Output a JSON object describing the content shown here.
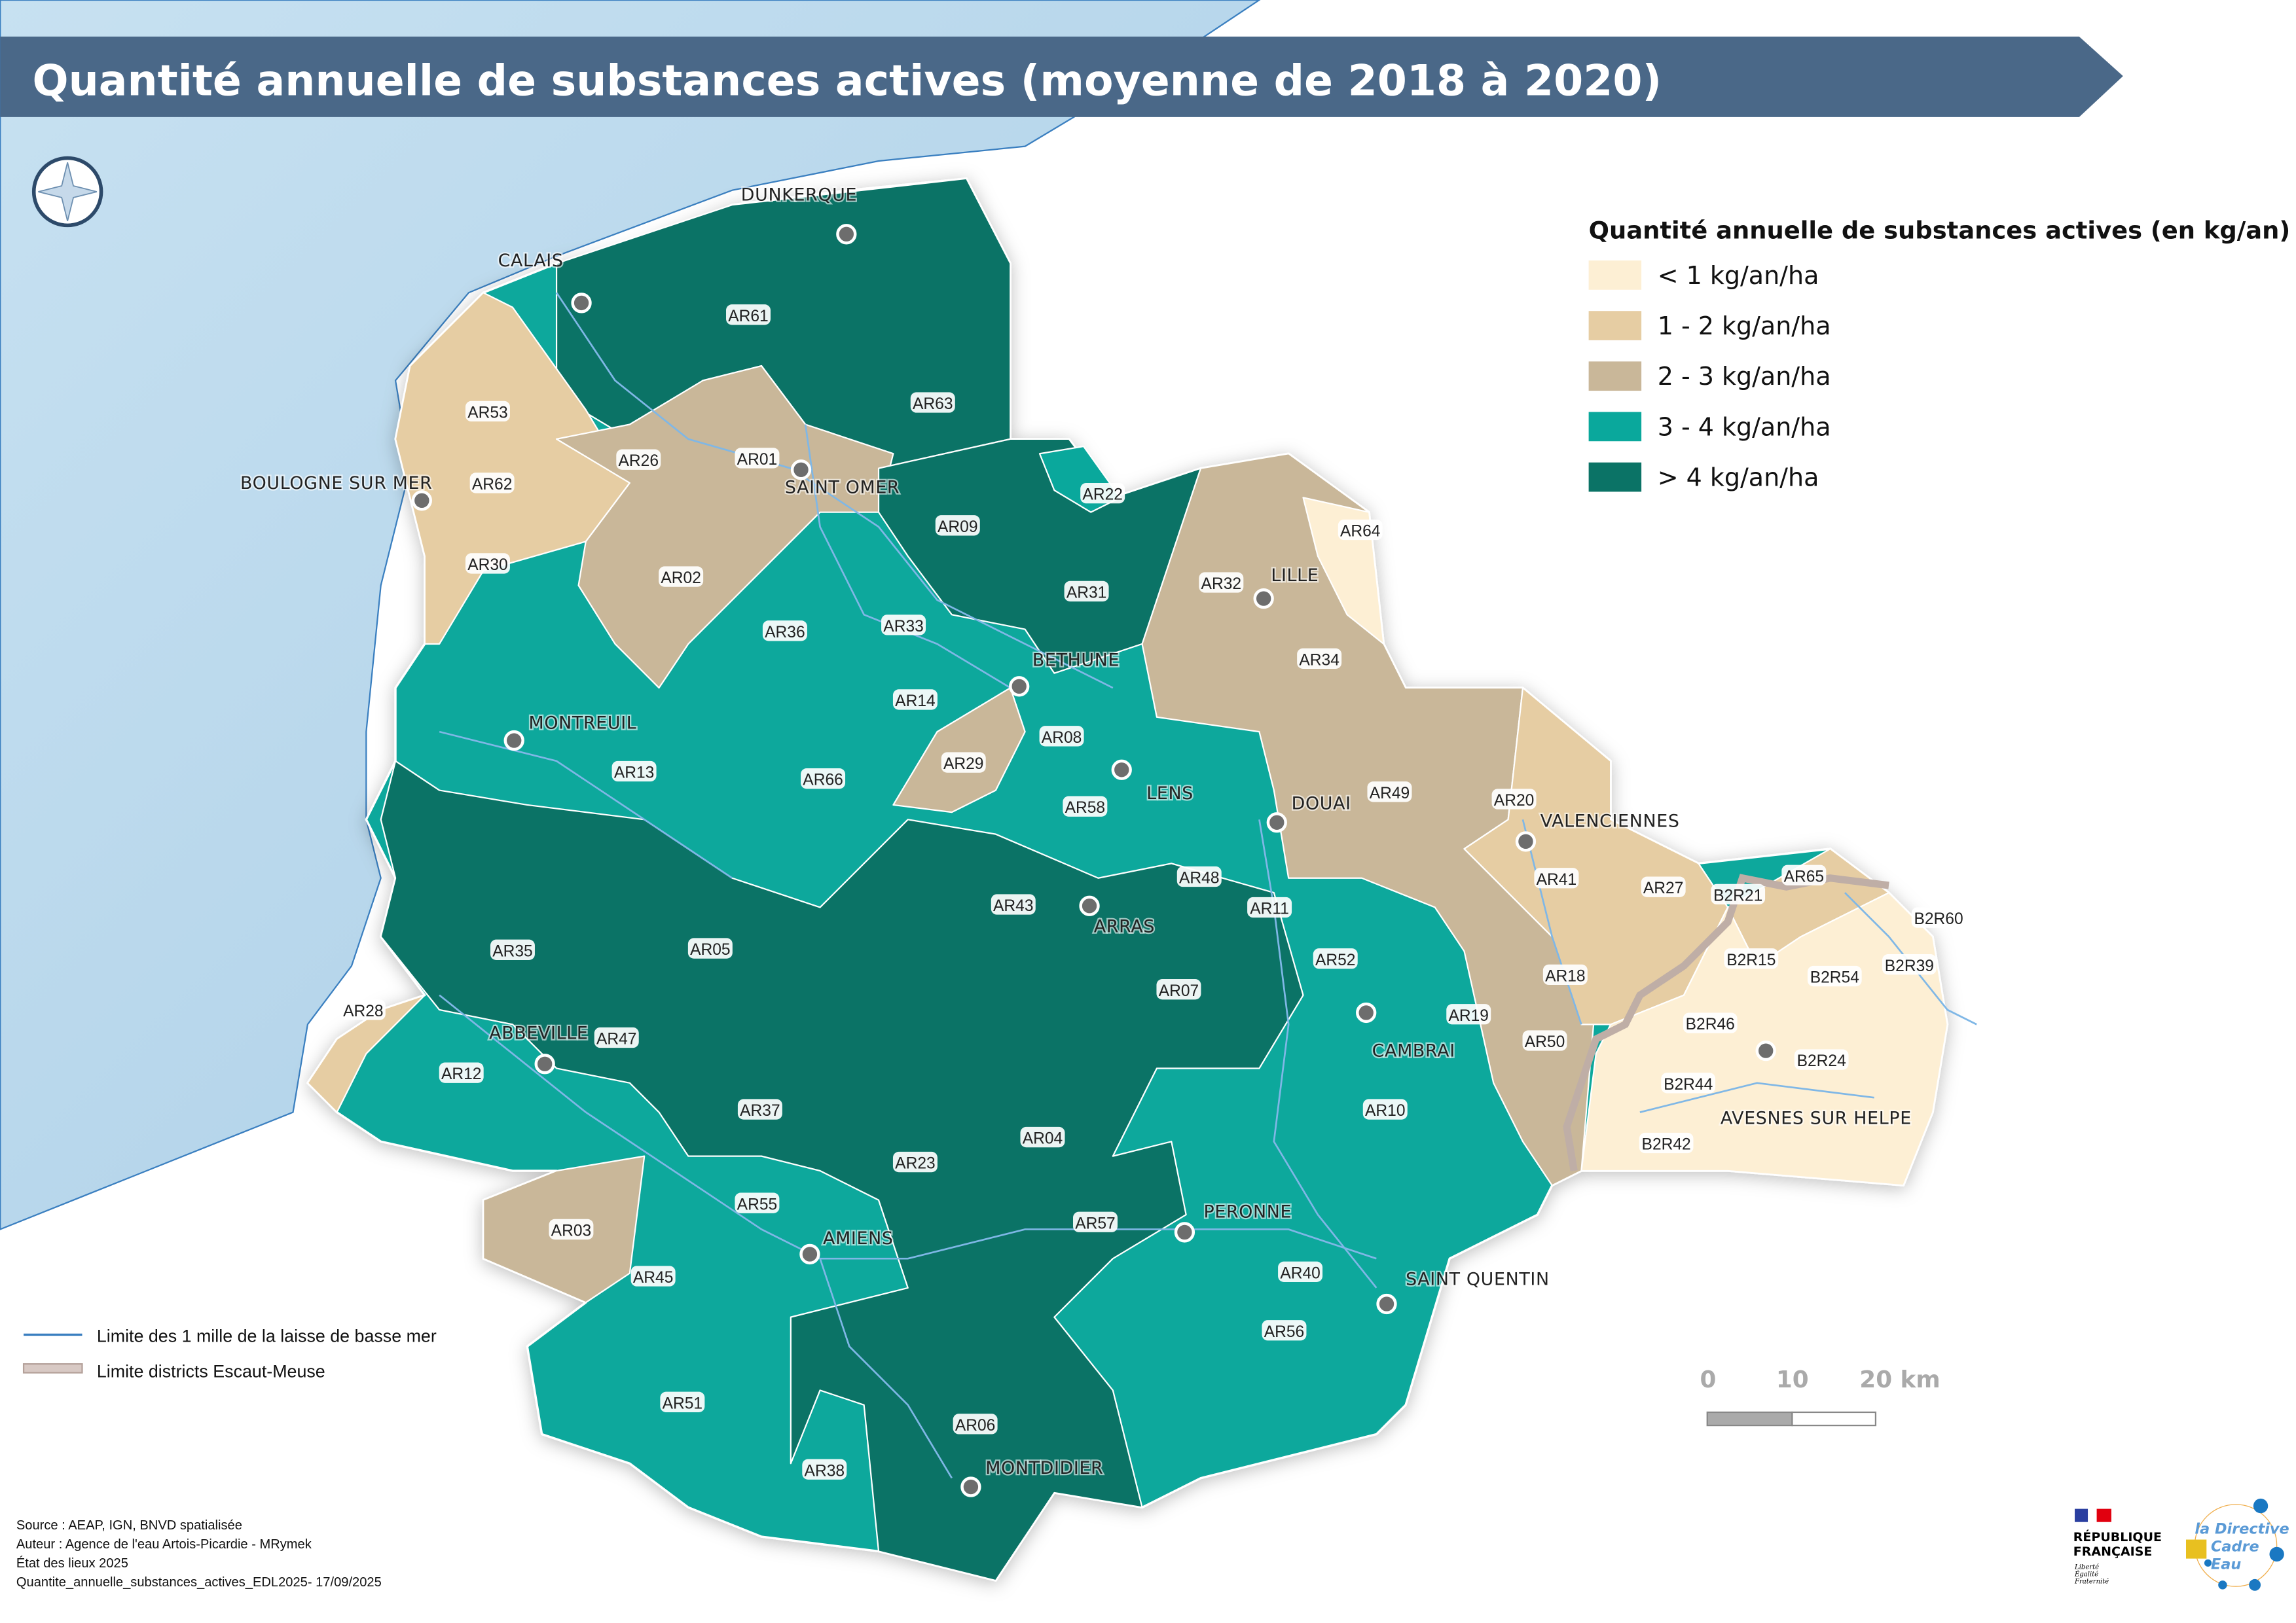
{
  "title": "Quantité annuelle de substances actives (moyenne de 2018 à 2020)",
  "legend": {
    "title": "Quantité annuelle de substances actives (en kg/an)",
    "classes": [
      {
        "label": "< 1 kg/an/ha",
        "color": "#fdefd4"
      },
      {
        "label": "1 - 2 kg/an/ha",
        "color": "#e6cda3"
      },
      {
        "label": "2 - 3 kg/an/ha",
        "color": "#c9b799"
      },
      {
        "label": "3 - 4 kg/an/ha",
        "color": "#0aa89c"
      },
      {
        "label": "> 4 kg/an/ha",
        "color": "#0b7366"
      }
    ],
    "lines": [
      {
        "label": "Limite des 1 mille de la laisse de basse mer",
        "color": "#3a7fc0"
      },
      {
        "label": "Limite districts Escaut-Meuse",
        "color": "#c7b3ab"
      }
    ]
  },
  "colors": {
    "banner": "#4a6888",
    "sea": "#cfe5f3",
    "river": "#7fb7e6",
    "city_dot": "#6d6d6d"
  },
  "cities": [
    "DUNKERQUE",
    "CALAIS",
    "BOULOGNE SUR MER",
    "SAINT OMER",
    "LILLE",
    "BETHUNE",
    "MONTREUIL",
    "LENS",
    "DOUAI",
    "VALENCIENNES",
    "ARRAS",
    "ABBEVILLE",
    "CAMBRAI",
    "AVESNES SUR HELPE",
    "PERONNE",
    "AMIENS",
    "SAINT QUENTIN",
    "MONTDIDIER"
  ],
  "water_bodies": [
    {
      "id": "AR61",
      "class": 4
    },
    {
      "id": "AR63",
      "class": 4
    },
    {
      "id": "AR53",
      "class": 1
    },
    {
      "id": "AR62",
      "class": 1
    },
    {
      "id": "AR30",
      "class": 1
    },
    {
      "id": "AR26",
      "class": 2
    },
    {
      "id": "AR01",
      "class": 2
    },
    {
      "id": "AR02",
      "class": 2
    },
    {
      "id": "AR22",
      "class": 3
    },
    {
      "id": "AR09",
      "class": 4
    },
    {
      "id": "AR31",
      "class": 4
    },
    {
      "id": "AR32",
      "class": 2
    },
    {
      "id": "AR64",
      "class": 0
    },
    {
      "id": "AR34",
      "class": 2
    },
    {
      "id": "AR36",
      "class": 3
    },
    {
      "id": "AR33",
      "class": 3
    },
    {
      "id": "AR14",
      "class": 3
    },
    {
      "id": "AR29",
      "class": 2
    },
    {
      "id": "AR08",
      "class": 3
    },
    {
      "id": "AR58",
      "class": 3
    },
    {
      "id": "AR13",
      "class": 3
    },
    {
      "id": "AR66",
      "class": 3
    },
    {
      "id": "AR49",
      "class": 2
    },
    {
      "id": "AR20",
      "class": 1
    },
    {
      "id": "AR41",
      "class": 1
    },
    {
      "id": "AR27",
      "class": 1
    },
    {
      "id": "AR65",
      "class": 1
    },
    {
      "id": "AR18",
      "class": 2
    },
    {
      "id": "AR50",
      "class": 2
    },
    {
      "id": "AR43",
      "class": 4
    },
    {
      "id": "AR48",
      "class": 3
    },
    {
      "id": "AR11",
      "class": 3
    },
    {
      "id": "AR52",
      "class": 3
    },
    {
      "id": "AR19",
      "class": 3
    },
    {
      "id": "AR10",
      "class": 3
    },
    {
      "id": "AR07",
      "class": 4
    },
    {
      "id": "AR05",
      "class": 4
    },
    {
      "id": "AR35",
      "class": 4
    },
    {
      "id": "AR28",
      "class": 1
    },
    {
      "id": "AR47",
      "class": 4
    },
    {
      "id": "AR12",
      "class": 3
    },
    {
      "id": "AR37",
      "class": 4
    },
    {
      "id": "AR04",
      "class": 4
    },
    {
      "id": "AR23",
      "class": 4
    },
    {
      "id": "AR55",
      "class": 3
    },
    {
      "id": "AR03",
      "class": 2
    },
    {
      "id": "AR45",
      "class": 3
    },
    {
      "id": "AR57",
      "class": 4
    },
    {
      "id": "AR40",
      "class": 3
    },
    {
      "id": "AR56",
      "class": 3
    },
    {
      "id": "AR51",
      "class": 3
    },
    {
      "id": "AR38",
      "class": 3
    },
    {
      "id": "AR06",
      "class": 4
    },
    {
      "id": "B2R21",
      "class": 1
    },
    {
      "id": "B2R60",
      "class": 0
    },
    {
      "id": "B2R15",
      "class": 1
    },
    {
      "id": "B2R39",
      "class": 0
    },
    {
      "id": "B2R54",
      "class": 0
    },
    {
      "id": "B2R46",
      "class": 0
    },
    {
      "id": "B2R24",
      "class": 0
    },
    {
      "id": "B2R44",
      "class": 0
    },
    {
      "id": "B2R42",
      "class": 0
    }
  ],
  "scale": {
    "ticks": [
      "0",
      "10",
      "20 km"
    ]
  },
  "footer": [
    "Source : AEAP, IGN, BNVD spatialisée",
    "Auteur : Agence de l'eau Artois-Picardie - MRymek",
    "État des lieux 2025",
    "Quantite_annuelle_substances_actives_EDL2025- 17/09/2025"
  ],
  "logos": {
    "rf": {
      "line1": "RÉPUBLIQUE",
      "line2": "FRANÇAISE",
      "motto": [
        "Liberté",
        "Égalité",
        "Fraternité"
      ]
    },
    "dce": {
      "line1": "la Directive",
      "line2": "Cadre",
      "line3": "Eau"
    }
  }
}
